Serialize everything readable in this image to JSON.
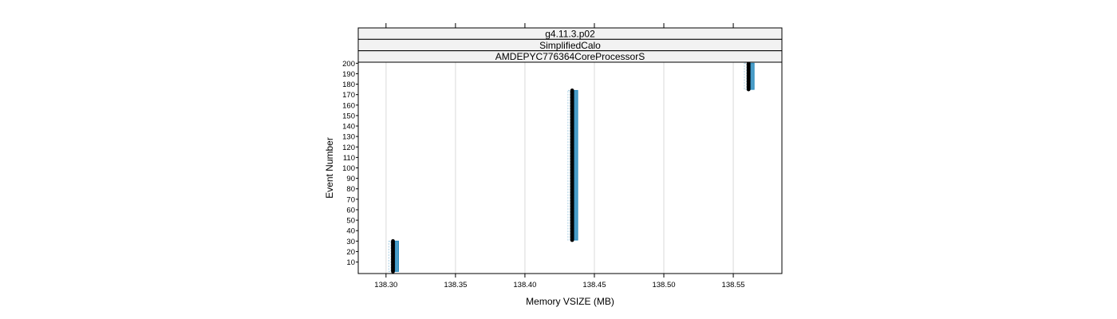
{
  "chart_data": {
    "type": "scatter",
    "strips": [
      "g4.11.3.p02",
      "SimplifiedCalo",
      "AMDEPYC776364CoreProcessorS"
    ],
    "xlabel": "Memory VSIZE (MB)",
    "ylabel": "Event Number",
    "xlim": [
      138.28,
      138.585
    ],
    "ylim": [
      -1,
      201
    ],
    "xticks": [
      138.3,
      138.35,
      138.4,
      138.45,
      138.5,
      138.55
    ],
    "xtick_labels": [
      "138.30",
      "138.35",
      "138.40",
      "138.45",
      "138.50",
      "138.55"
    ],
    "yticks": [
      10,
      20,
      30,
      40,
      50,
      60,
      70,
      80,
      90,
      100,
      110,
      120,
      130,
      140,
      150,
      160,
      170,
      180,
      190,
      200
    ],
    "grid": true,
    "clusters": [
      {
        "x_min": 138.302,
        "x_max": 138.309,
        "x_center": 138.305,
        "y_min": 1,
        "y_max": 30
      },
      {
        "x_min": 138.431,
        "x_max": 138.438,
        "x_center": 138.434,
        "y_min": 31,
        "y_max": 174
      },
      {
        "x_min": 138.558,
        "x_max": 138.565,
        "x_center": 138.561,
        "y_min": 175,
        "y_max": 200
      }
    ],
    "colors": {
      "points": "#000000",
      "spread": "#2b8cbe",
      "spread_light": "#a6cee3",
      "strip_bg": "#f2f2f2",
      "grid": "#e6e6e6"
    }
  }
}
